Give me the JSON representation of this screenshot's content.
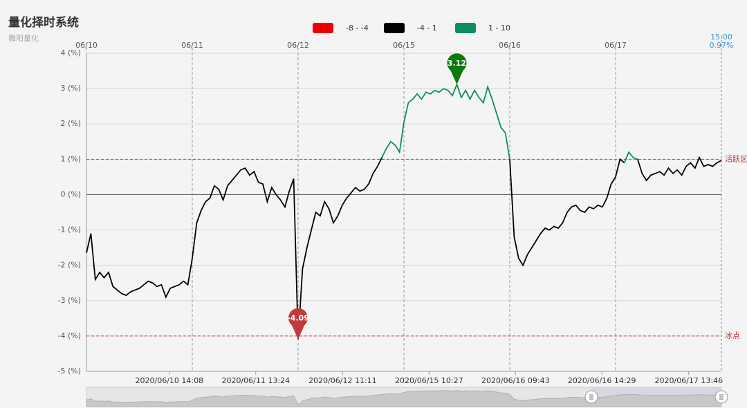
{
  "chart_data": {
    "type": "line",
    "title": "量化择时系统",
    "subtitle": "舞阳量化",
    "color_ranges": [
      {
        "label": "-8 - -4",
        "from": -8,
        "to": -4,
        "color": "#ee0000"
      },
      {
        "label": "-4 - 1",
        "from": -4,
        "to": 1,
        "color": "#000000"
      },
      {
        "label": "1 - 10",
        "from": 1,
        "to": 10,
        "color": "#0a8f5f"
      }
    ],
    "x": [
      0,
      10,
      20,
      30,
      40,
      50,
      60,
      70,
      80,
      90,
      100,
      110,
      120,
      130,
      140,
      150,
      160,
      170,
      180,
      190,
      200,
      210,
      220,
      230,
      240,
      250,
      260,
      270,
      280,
      290,
      300,
      310,
      320,
      330,
      340,
      350,
      360,
      370,
      380,
      390,
      400,
      410,
      420,
      430,
      440,
      450,
      460,
      470,
      480,
      490,
      500,
      510,
      520,
      530,
      540,
      550,
      560,
      570,
      580,
      590,
      600,
      610,
      620,
      630,
      640,
      650,
      660,
      670,
      680,
      690,
      700,
      710,
      720,
      730,
      740,
      750,
      760,
      770,
      780,
      790,
      800,
      810,
      820,
      830,
      840,
      850,
      860,
      870,
      880,
      890,
      900,
      910,
      920,
      930,
      940,
      950,
      960,
      970,
      980,
      990,
      1000,
      1010,
      1020,
      1030,
      1040,
      1050,
      1060,
      1070,
      1080,
      1090,
      1100,
      1110,
      1120,
      1130,
      1140,
      1150,
      1160,
      1170,
      1180,
      1190,
      1200,
      1210,
      1220,
      1230,
      1240,
      1250,
      1260,
      1270,
      1280,
      1290,
      1300,
      1310,
      1320,
      1330,
      1340,
      1350,
      1360,
      1370,
      1380,
      1390,
      1400,
      1410,
      1420,
      1430,
      1440
    ],
    "values": [
      -1.65,
      -1.1,
      -2.4,
      -2.2,
      -2.35,
      -2.2,
      -2.6,
      -2.7,
      -2.8,
      -2.85,
      -2.75,
      -2.7,
      -2.65,
      -2.55,
      -2.45,
      -2.5,
      -2.6,
      -2.55,
      -2.9,
      -2.65,
      -2.6,
      -2.55,
      -2.45,
      -2.55,
      -1.8,
      -0.8,
      -0.45,
      -0.2,
      -0.1,
      0.25,
      0.15,
      -0.15,
      0.25,
      0.4,
      0.55,
      0.7,
      0.75,
      0.55,
      0.65,
      0.35,
      0.3,
      -0.2,
      0.2,
      0.0,
      -0.15,
      -0.35,
      0.1,
      0.45,
      -4.09,
      -2.1,
      -1.5,
      -1.0,
      -0.5,
      -0.6,
      -0.2,
      -0.4,
      -0.8,
      -0.6,
      -0.3,
      -0.1,
      0.05,
      0.2,
      0.1,
      0.15,
      0.3,
      0.6,
      0.8,
      1.05,
      1.3,
      1.5,
      1.4,
      1.2,
      2.05,
      2.6,
      2.7,
      2.85,
      2.7,
      2.9,
      2.85,
      2.95,
      2.9,
      3.0,
      2.95,
      2.8,
      3.12,
      2.75,
      2.95,
      2.7,
      2.95,
      2.75,
      2.6,
      3.05,
      2.7,
      2.3,
      1.9,
      1.75,
      1.0,
      -1.2,
      -1.8,
      -2.0,
      -1.7,
      -1.5,
      -1.3,
      -1.1,
      -0.95,
      -1.0,
      -0.9,
      -0.95,
      -0.8,
      -0.5,
      -0.35,
      -0.3,
      -0.45,
      -0.5,
      -0.35,
      -0.4,
      -0.3,
      -0.35,
      -0.1,
      0.3,
      0.5,
      1.0,
      0.9,
      1.2,
      1.05,
      1.0,
      0.6,
      0.4,
      0.55,
      0.6,
      0.65,
      0.55,
      0.75,
      0.6,
      0.7,
      0.55,
      0.8,
      0.9,
      0.75,
      1.05,
      0.8,
      0.85,
      0.8,
      0.9,
      0.97
    ],
    "xlim": [
      0,
      1440
    ],
    "ylim": [
      -5,
      4
    ],
    "yticks": [
      {
        "value": 4,
        "label": "4 (%)"
      },
      {
        "value": 3,
        "label": "3 (%)"
      },
      {
        "value": 2,
        "label": "2 (%)"
      },
      {
        "value": 1,
        "label": "1 (%)"
      },
      {
        "value": 0,
        "label": "0 (%)"
      },
      {
        "value": -1,
        "label": "-1 (%)"
      },
      {
        "value": -2,
        "label": "-2 (%)"
      },
      {
        "value": -3,
        "label": "-3 (%)"
      },
      {
        "value": -4,
        "label": "-4 (%)"
      },
      {
        "value": -5,
        "label": "-5 (%)"
      }
    ],
    "xticks": [
      {
        "value": 0,
        "label": "06/10"
      },
      {
        "value": 240,
        "label": "06/11"
      },
      {
        "value": 480,
        "label": "06/12"
      },
      {
        "value": 720,
        "label": "06/15"
      },
      {
        "value": 960,
        "label": "06/16"
      },
      {
        "value": 1200,
        "label": "06/17"
      }
    ],
    "time_ticks": [
      {
        "value": 188,
        "label": "2020/06/10 14:08"
      },
      {
        "value": 384,
        "label": "2020/06/11 13:24"
      },
      {
        "value": 581,
        "label": "2020/06/12 11:11"
      },
      {
        "value": 777,
        "label": "2020/06/15 10:27"
      },
      {
        "value": 973,
        "label": "2020/06/16 09:43"
      },
      {
        "value": 1169,
        "label": "2020/06/16 14:29"
      },
      {
        "value": 1366,
        "label": "2020/06/17 13:46"
      }
    ],
    "ref_lines": [
      {
        "value": 1,
        "label": "活跃区"
      },
      {
        "value": -4,
        "label": "冰点"
      }
    ],
    "max_marker": {
      "x": 840,
      "value": 3.12,
      "color": "#0a7a0a"
    },
    "min_marker": {
      "x": 480,
      "value": -4.09,
      "color": "#c0393b"
    },
    "end_marker": {
      "x": 1440,
      "x_label": "15:00",
      "value": 0.97,
      "label": "0.97%"
    }
  }
}
